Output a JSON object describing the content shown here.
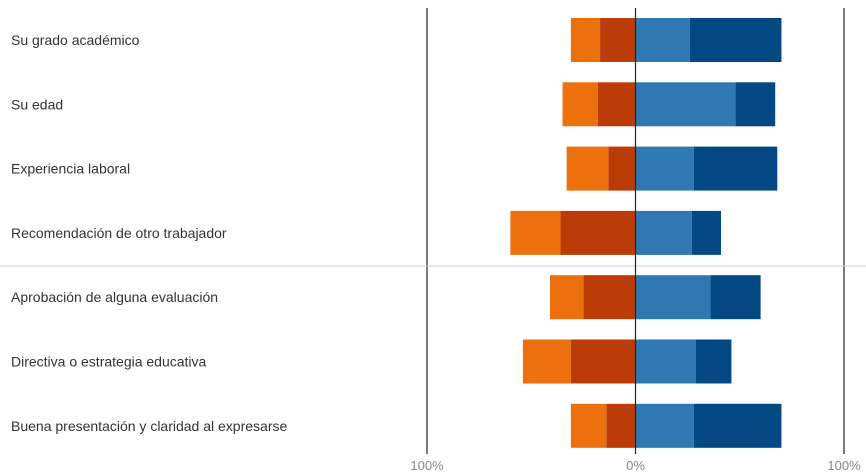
{
  "chart_data": {
    "type": "bar",
    "subtype": "diverging-stacked",
    "title": "",
    "xlabel": "",
    "ylabel": "",
    "xlim": [
      -100,
      100
    ],
    "x_ticks": [
      "100%",
      "0%",
      "100%"
    ],
    "grid": false,
    "legend": "none",
    "categories": [
      "Su grado académico",
      "Su edad",
      "Experiencia laboral",
      "Recomendación de otro trabajador",
      "Aprobación de alguna evaluación",
      "Directiva o estrategia educativa",
      "Buena presentación y claridad al expresarse"
    ],
    "series": [
      {
        "side": "negative",
        "color": "#bb3c06",
        "values": [
          17,
          18,
          13,
          36,
          25,
          31,
          14
        ]
      },
      {
        "side": "negative",
        "color": "#ec700d",
        "values": [
          14,
          17,
          20,
          24,
          16,
          23,
          17
        ]
      },
      {
        "side": "positive",
        "color": "#2f78b1",
        "values": [
          26,
          48,
          28,
          27,
          36,
          29,
          28
        ]
      },
      {
        "side": "positive",
        "color": "#034882",
        "values": [
          44,
          19,
          40,
          14,
          24,
          17,
          42
        ]
      }
    ],
    "separator_after_index": 3
  }
}
